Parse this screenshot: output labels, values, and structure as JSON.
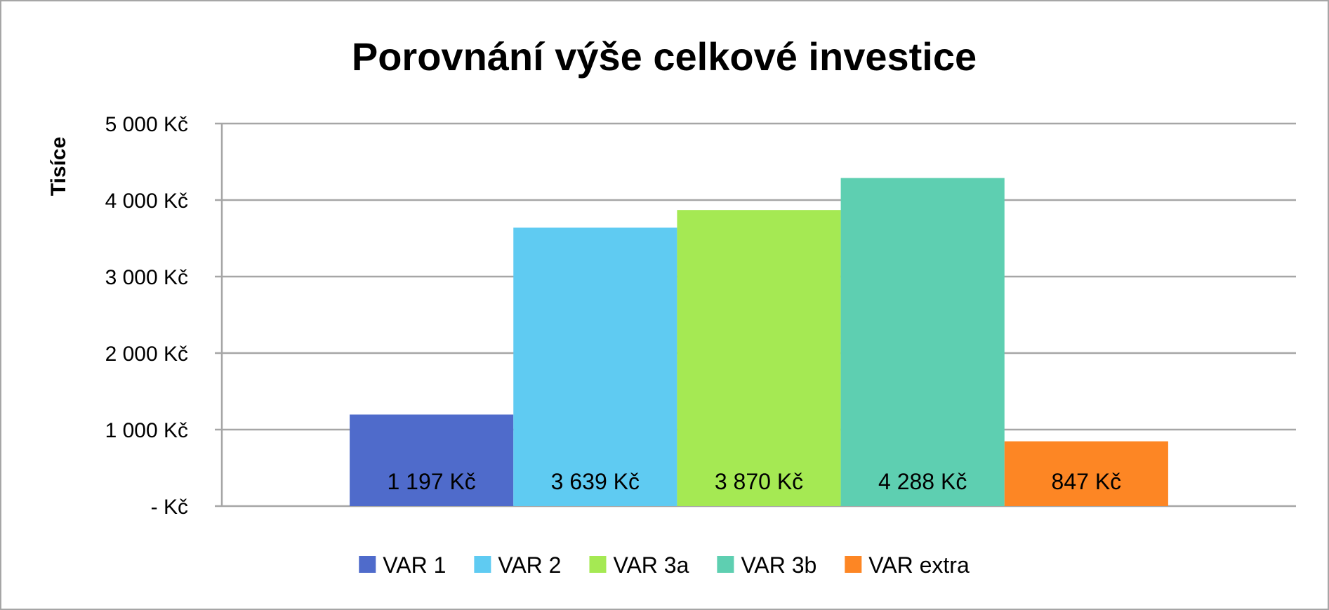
{
  "chart_data": {
    "type": "bar",
    "title": "Porovnání výše celkové investice",
    "ylabel": "Tisíce",
    "ylim": [
      0,
      5000
    ],
    "yticks": [
      0,
      1000,
      2000,
      3000,
      4000,
      5000
    ],
    "ytick_labels": [
      "-   Kč",
      "1 000 Kč",
      "2 000 Kč",
      "3 000 Kč",
      "4 000 Kč",
      "5 000 Kč"
    ],
    "grid": true,
    "legend_position": "bottom",
    "series": [
      {
        "name": "VAR 1",
        "value": 1197,
        "label": "1 197 Kč",
        "color": "#4f6bcb"
      },
      {
        "name": "VAR 2",
        "value": 3639,
        "label": "3 639 Kč",
        "color": "#5fcbf2"
      },
      {
        "name": "VAR 3a",
        "value": 3870,
        "label": "3 870 Kč",
        "color": "#a5e953"
      },
      {
        "name": "VAR 3b",
        "value": 4288,
        "label": "4 288 Kč",
        "color": "#5ecfb1"
      },
      {
        "name": "VAR extra",
        "value": 847,
        "label": "847 Kč",
        "color": "#fd8624"
      }
    ]
  }
}
